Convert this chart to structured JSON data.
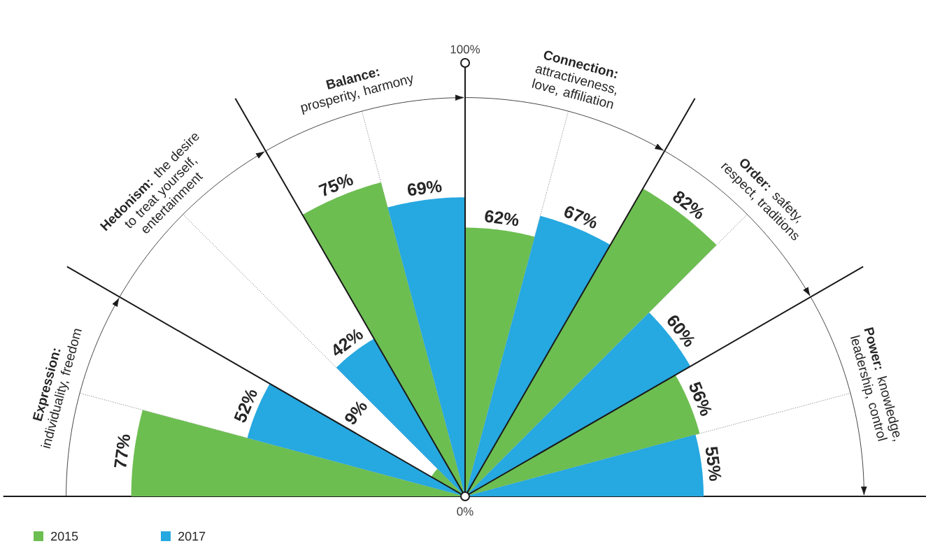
{
  "chart_data": {
    "type": "other",
    "categories": [
      "**Expression:** individuality, freedom",
      "**Hedonism:** the desire to treat yourself, entertainment",
      "**Balance:** prosperity, harmony",
      "**Connection:** attractiveness, love, affiliation",
      "**Order:** safety, respect, traditions",
      "**Power:** knowledge, leadership, control"
    ],
    "series": [
      {
        "name": "2015",
        "color": "#6dbe51",
        "values": [
          77,
          9,
          75,
          62,
          82,
          56
        ],
        "value_labels": [
          "77%",
          "9%",
          "75%",
          "62%",
          "82%",
          "56%"
        ]
      },
      {
        "name": "2017",
        "color": "#26a8e0",
        "values": [
          52,
          42,
          69,
          67,
          60,
          55
        ],
        "value_labels": [
          "52%",
          "42%",
          "69%",
          "67%",
          "60%",
          "55%"
        ]
      }
    ],
    "annotations": [
      "100%",
      "0%"
    ],
    "legend": "bottom left"
  }
}
